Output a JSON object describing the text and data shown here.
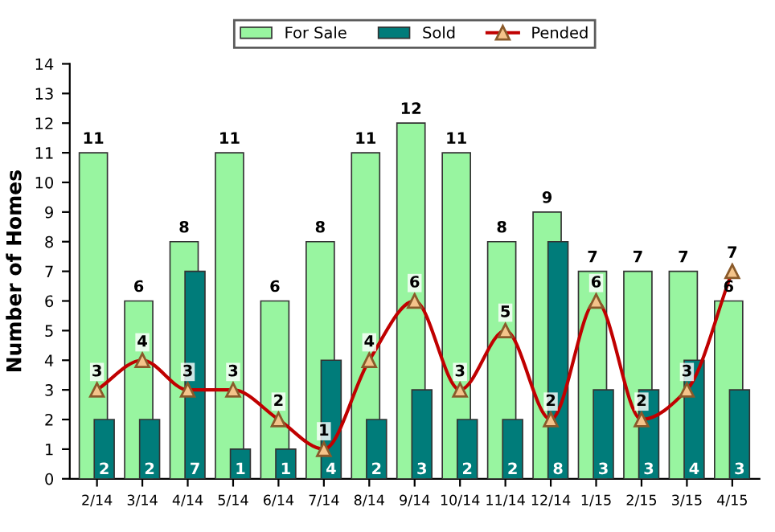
{
  "chart_data": {
    "type": "bar",
    "ylabel": "Number of Homes",
    "categories": [
      "2/14",
      "3/14",
      "4/14",
      "5/14",
      "6/14",
      "7/14",
      "8/14",
      "9/14",
      "10/14",
      "11/14",
      "12/14",
      "1/15",
      "2/15",
      "3/15",
      "4/15"
    ],
    "series": [
      {
        "name": "For Sale",
        "color": "#98f5a0",
        "values": [
          11,
          6,
          8,
          11,
          6,
          8,
          11,
          12,
          11,
          8,
          9,
          7,
          7,
          7,
          6
        ]
      },
      {
        "name": "Sold",
        "color": "#007c7a",
        "values": [
          2,
          2,
          7,
          1,
          1,
          4,
          2,
          3,
          2,
          2,
          8,
          3,
          3,
          4,
          3
        ]
      },
      {
        "name": "Pended",
        "type": "line",
        "color": "#c00000",
        "marker": "triangle",
        "values": [
          3,
          4,
          3,
          3,
          2,
          1,
          4,
          6,
          3,
          5,
          2,
          6,
          2,
          3,
          7
        ]
      }
    ],
    "ylim": [
      0,
      14
    ],
    "yticks": [
      0,
      1,
      2,
      3,
      4,
      5,
      6,
      7,
      8,
      9,
      10,
      11,
      12,
      13,
      14
    ],
    "data_labels": true,
    "legend": "top",
    "grid": false
  }
}
